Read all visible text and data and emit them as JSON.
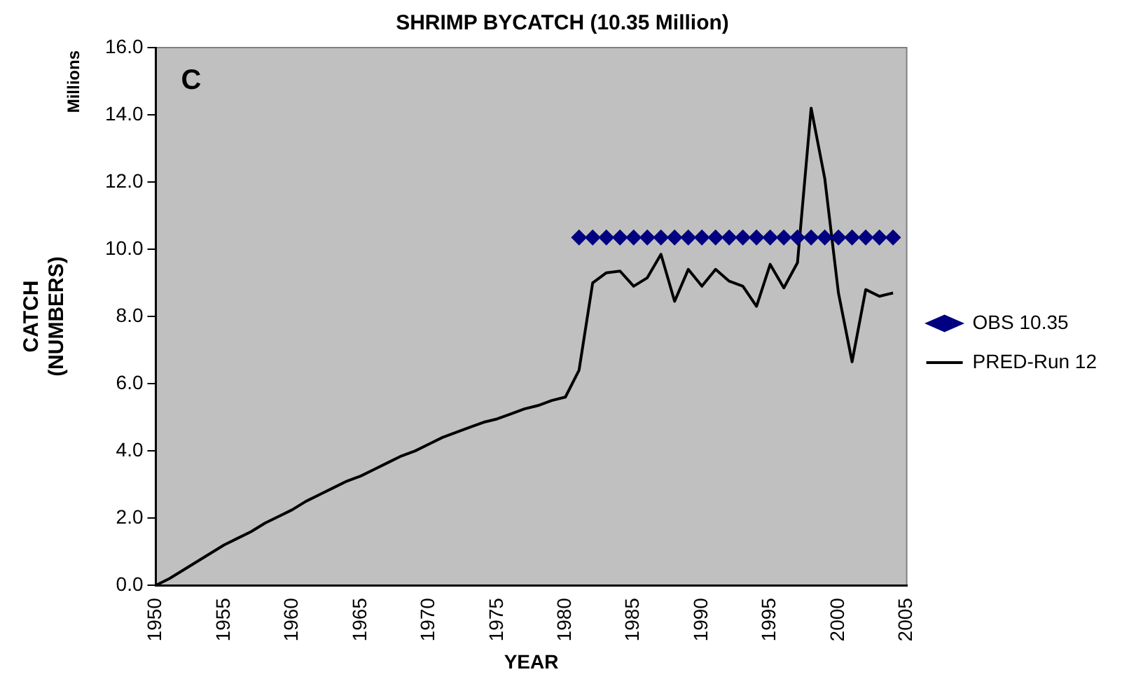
{
  "chart_data": {
    "type": "line",
    "title": "SHRIMP BYCATCH (10.35 Million)",
    "xlabel": "YEAR",
    "ylabel": "CATCH (NUMBERS)",
    "annotations": [
      "C",
      "Millions"
    ],
    "xlim": [
      1950,
      2005
    ],
    "xticks": [
      1950,
      1955,
      1960,
      1965,
      1970,
      1975,
      1980,
      1985,
      1990,
      1995,
      2000,
      2005
    ],
    "ylim": [
      0,
      16
    ],
    "yticks": [
      {
        "value": 0,
        "label": "0.0"
      },
      {
        "value": 2,
        "label": "2.0"
      },
      {
        "value": 4,
        "label": "4.0"
      },
      {
        "value": 6,
        "label": "6.0"
      },
      {
        "value": 8,
        "label": "8.0"
      },
      {
        "value": 10,
        "label": "10.0"
      },
      {
        "value": 12,
        "label": "12.0"
      },
      {
        "value": 14,
        "label": "14.0"
      },
      {
        "value": 16,
        "label": "16.0"
      }
    ],
    "grid": false,
    "legend": "right",
    "series": [
      {
        "name": "OBS 10.35",
        "type": "scatter",
        "marker": "diamond",
        "color": "#000080",
        "x": [
          1981,
          1982,
          1983,
          1984,
          1985,
          1986,
          1987,
          1988,
          1989,
          1990,
          1991,
          1992,
          1993,
          1994,
          1995,
          1996,
          1997,
          1998,
          1999,
          2000,
          2001,
          2002,
          2003,
          2004
        ],
        "values": [
          10.35,
          10.35,
          10.35,
          10.35,
          10.35,
          10.35,
          10.35,
          10.35,
          10.35,
          10.35,
          10.35,
          10.35,
          10.35,
          10.35,
          10.35,
          10.35,
          10.35,
          10.35,
          10.35,
          10.35,
          10.35,
          10.35,
          10.35,
          10.35
        ]
      },
      {
        "name": "PRED-Run 12",
        "type": "line",
        "marker": "none",
        "line_style": "solid",
        "color": "#000000",
        "x": [
          1950,
          1951,
          1952,
          1953,
          1954,
          1955,
          1956,
          1957,
          1958,
          1959,
          1960,
          1961,
          1962,
          1963,
          1964,
          1965,
          1966,
          1967,
          1968,
          1969,
          1970,
          1971,
          1972,
          1973,
          1974,
          1975,
          1976,
          1977,
          1978,
          1979,
          1980,
          1981,
          1982,
          1983,
          1984,
          1985,
          1986,
          1987,
          1988,
          1989,
          1990,
          1991,
          1992,
          1993,
          1994,
          1995,
          1996,
          1997,
          1998,
          1999,
          2000,
          2001,
          2002,
          2003,
          2004
        ],
        "values": [
          0,
          0.2,
          0.45,
          0.7,
          0.95,
          1.2,
          1.4,
          1.6,
          1.85,
          2.05,
          2.25,
          2.5,
          2.7,
          2.9,
          3.1,
          3.25,
          3.45,
          3.65,
          3.85,
          4.0,
          4.2,
          4.4,
          4.55,
          4.7,
          4.85,
          4.95,
          5.1,
          5.25,
          5.35,
          5.5,
          5.6,
          6.4,
          9.0,
          9.3,
          9.35,
          8.9,
          9.15,
          9.85,
          8.45,
          9.4,
          8.9,
          9.4,
          9.05,
          8.9,
          8.3,
          9.55,
          8.85,
          9.6,
          14.2,
          12.1,
          8.7,
          6.65,
          8.8,
          8.6,
          8.7
        ]
      }
    ]
  }
}
